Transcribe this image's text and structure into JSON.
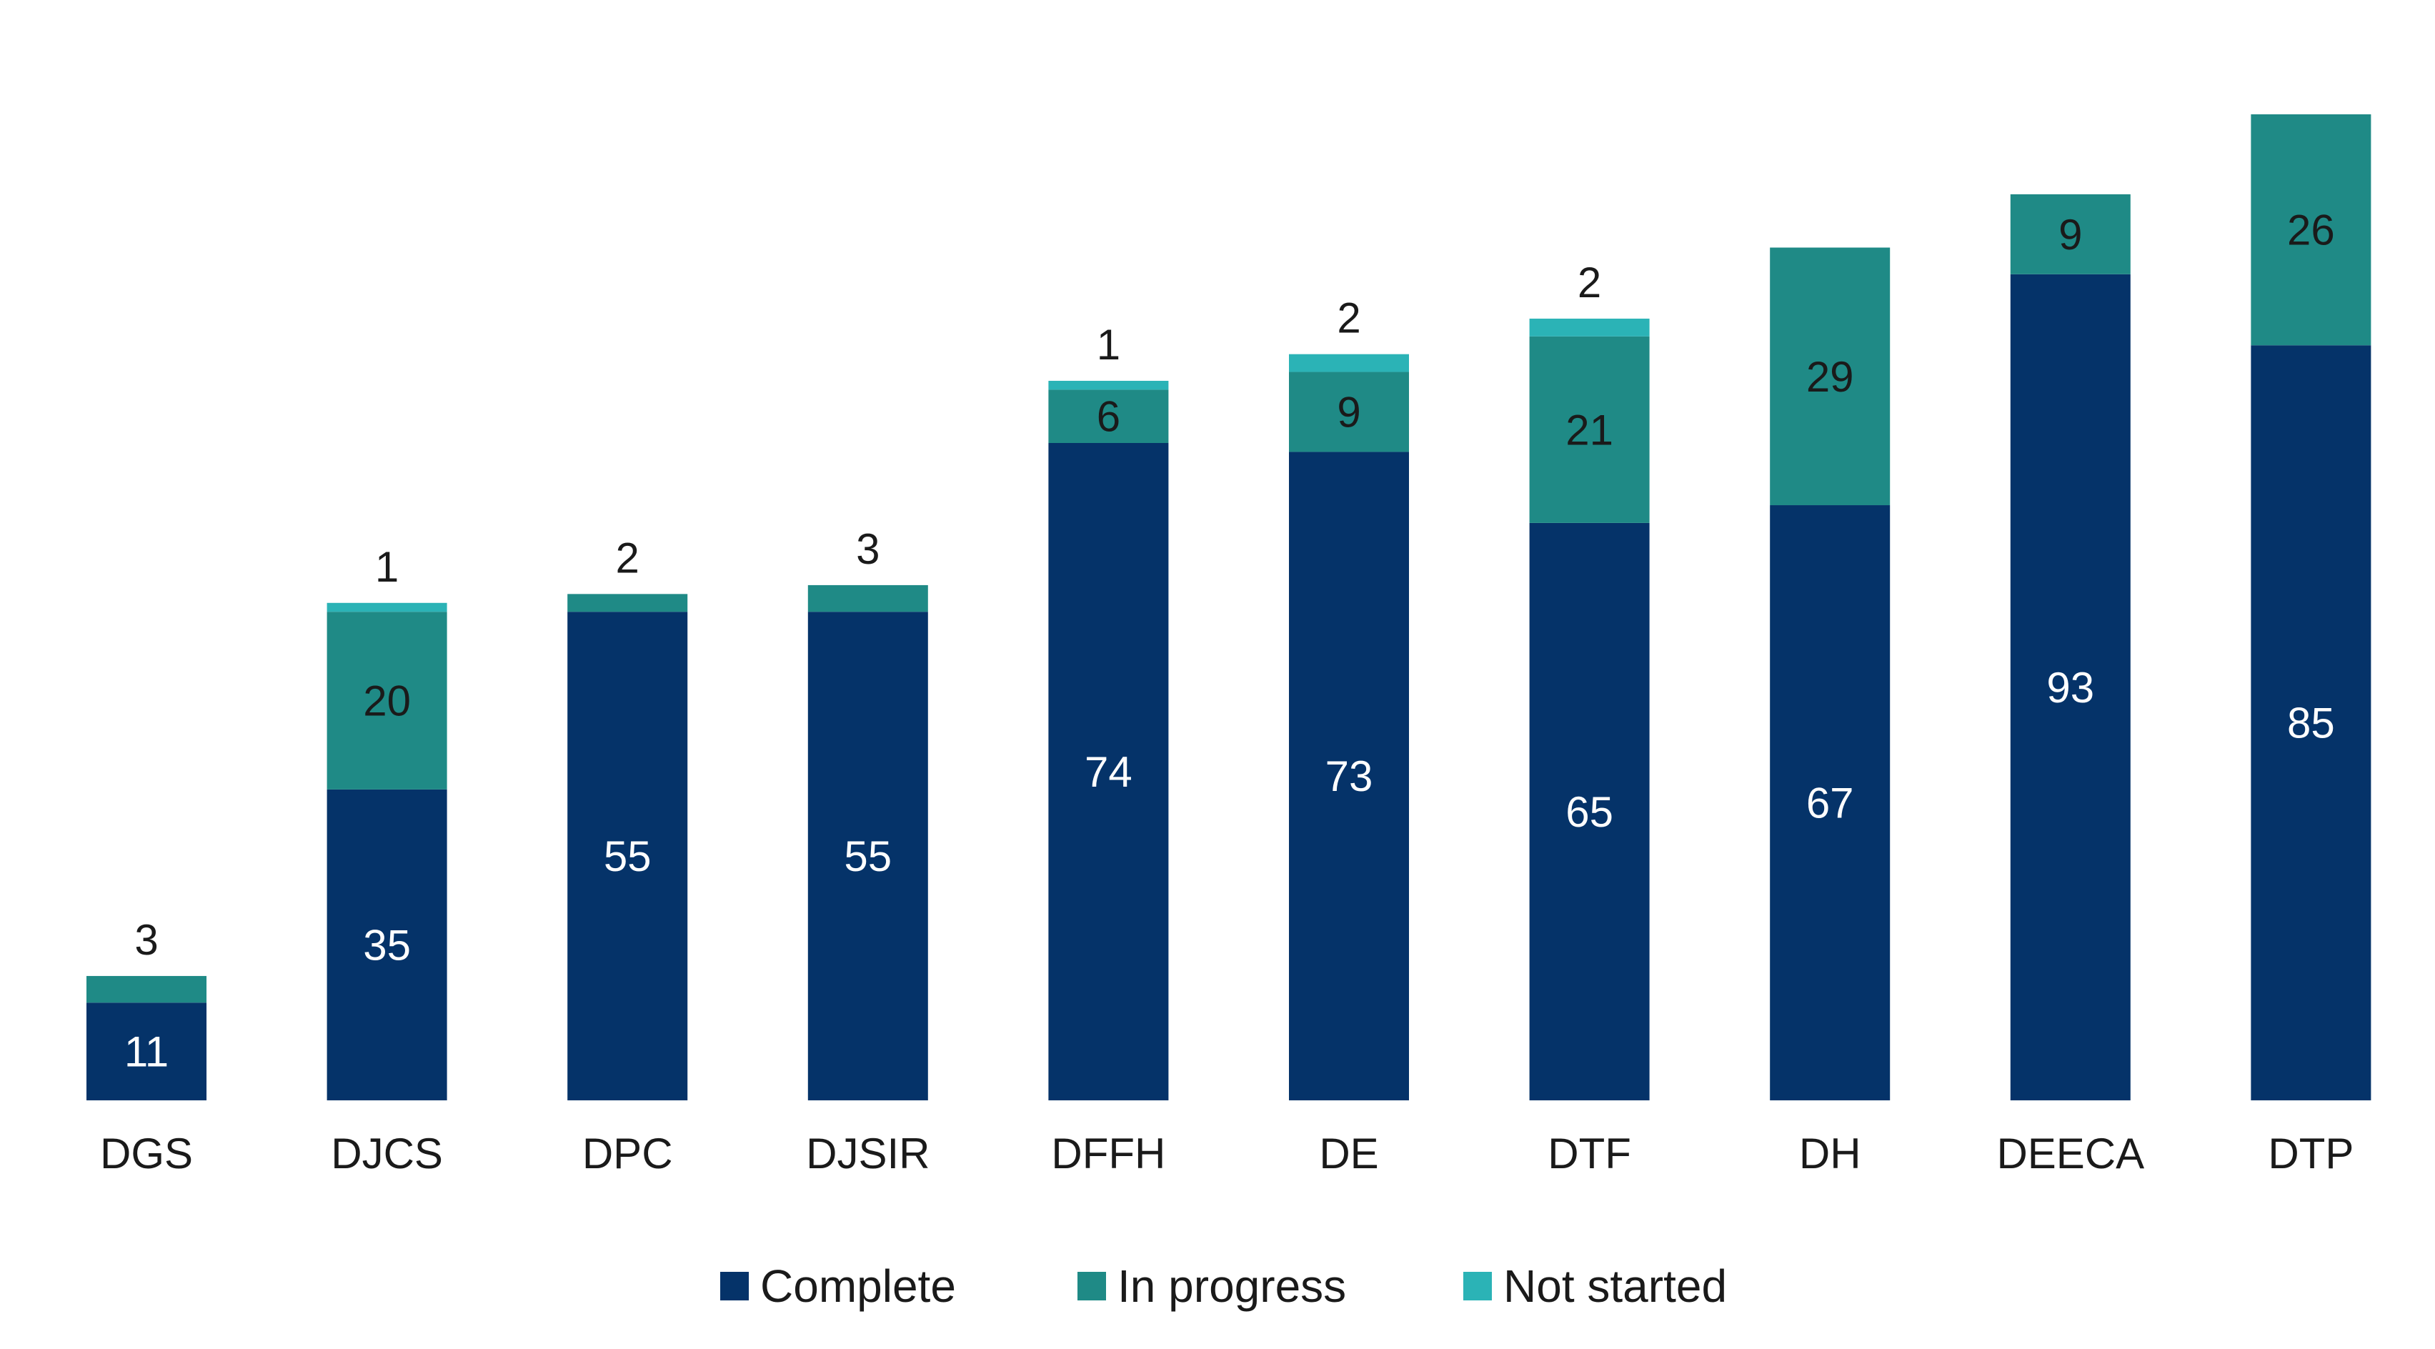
{
  "colors": {
    "complete": "#053369",
    "in_progress": "#1f8a86",
    "not_started": "#2bb3b6",
    "text_dark": "#1a1a1a",
    "text_light": "#ffffff"
  },
  "chart_data": {
    "type": "bar",
    "stacked": true,
    "categories": [
      "DGS",
      "DJCS",
      "DPC",
      "DJSIR",
      "DFFH",
      "DE",
      "DTF",
      "DH",
      "DEECA",
      "DTP"
    ],
    "series": [
      {
        "name": "Complete",
        "values": [
          11,
          35,
          55,
          55,
          74,
          73,
          65,
          67,
          93,
          85
        ]
      },
      {
        "name": "In progress",
        "values": [
          3,
          20,
          2,
          3,
          6,
          9,
          21,
          29,
          9,
          26
        ]
      },
      {
        "name": "Not started",
        "values": [
          0,
          1,
          0,
          0,
          1,
          2,
          2,
          0,
          0,
          0
        ]
      }
    ],
    "ylim": [
      0,
      111
    ],
    "grid": false,
    "legend_position": "bottom-center"
  },
  "legend": {
    "complete_label": "Complete",
    "in_progress_label": "In progress",
    "not_started_label": "Not started"
  }
}
